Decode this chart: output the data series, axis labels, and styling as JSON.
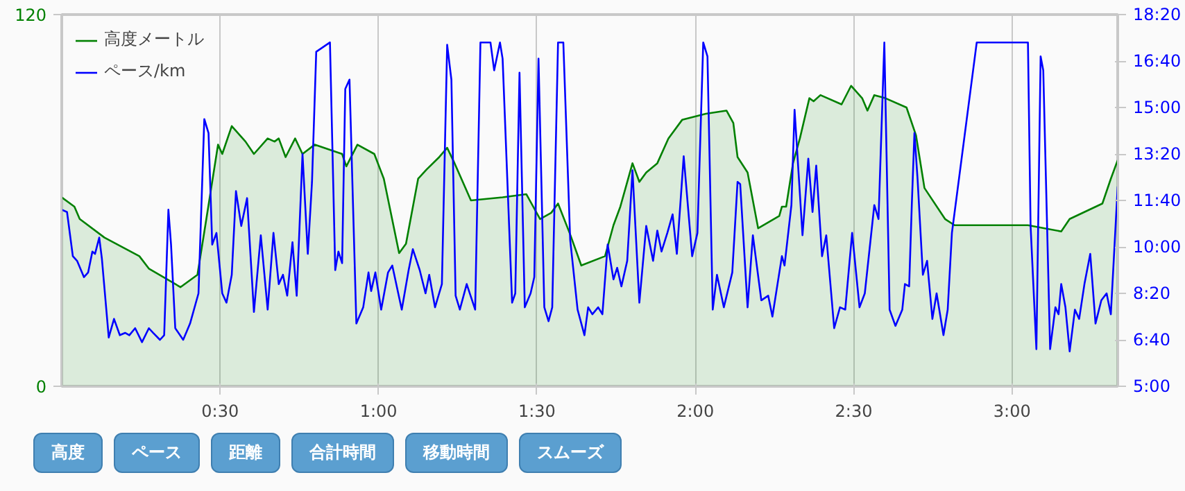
{
  "chart_data": {
    "type": "line",
    "xlim": [
      0,
      200
    ],
    "xticks": [
      {
        "value": 30,
        "label": "0:30"
      },
      {
        "value": 60,
        "label": "1:00"
      },
      {
        "value": 90,
        "label": "1:30"
      },
      {
        "value": 120,
        "label": "2:00"
      },
      {
        "value": 150,
        "label": "2:30"
      },
      {
        "value": 180,
        "label": "3:00"
      }
    ],
    "ylim": [
      0,
      120
    ],
    "yticks": [
      0,
      120
    ],
    "y2lim": [
      300,
      1100
    ],
    "y2ticks": [
      {
        "value": 300,
        "label": "5:00"
      },
      {
        "value": 400,
        "label": "6:40"
      },
      {
        "value": 500,
        "label": "8:20"
      },
      {
        "value": 600,
        "label": "10:00"
      },
      {
        "value": 700,
        "label": "11:40"
      },
      {
        "value": 800,
        "label": "13:20"
      },
      {
        "value": 900,
        "label": "15:00"
      },
      {
        "value": 1000,
        "label": "16:40"
      },
      {
        "value": 1100,
        "label": "18:20"
      }
    ],
    "grid": true,
    "legend": "top left",
    "series": [
      {
        "name": "高度メートル",
        "type": "area",
        "color": "#008000",
        "x": [
          0,
          2.4,
          3.4,
          8.1,
          14.7,
          16.5,
          22.5,
          25.7,
          27.2,
          29.6,
          30.4,
          32.2,
          34.8,
          36.4,
          39.0,
          40.3,
          41.1,
          42.4,
          44.2,
          45.6,
          47.9,
          53.1,
          53.9,
          56.0,
          59.2,
          61.0,
          63.9,
          65.2,
          67.5,
          69.1,
          71.5,
          73.0,
          74.4,
          77.5,
          83.5,
          88.0,
          90.6,
          92.7,
          94.0,
          96.3,
          98.4,
          102.9,
          104.5,
          105.8,
          108.1,
          109.4,
          110.7,
          112.8,
          114.9,
          117.5,
          122.0,
          125.9,
          127.2,
          128.0,
          129.9,
          131.9,
          135.9,
          136.4,
          137.2,
          138.5,
          139.8,
          141.6,
          142.4,
          143.7,
          147.7,
          149.5,
          151.6,
          152.6,
          153.9,
          156.0,
          160.0,
          161.8,
          163.4,
          167.3,
          169.1,
          179.6,
          183.0,
          189.3,
          190.9,
          197.1,
          198.7,
          200.0
        ],
        "values": [
          61,
          58,
          54,
          48,
          42,
          38,
          32,
          36,
          52,
          78,
          75,
          84,
          79,
          75,
          80,
          79,
          80,
          74,
          80,
          75,
          78,
          75,
          71,
          78,
          75,
          67,
          43,
          46,
          67,
          70,
          74,
          77,
          72,
          60,
          61,
          62,
          54,
          56,
          59,
          49,
          39,
          42,
          52,
          58,
          72,
          66,
          69,
          72,
          80,
          86,
          88,
          89,
          85,
          74,
          69,
          51,
          55,
          58,
          58,
          72,
          80,
          93,
          92,
          94,
          91,
          97,
          93,
          89,
          94,
          93,
          90,
          81,
          64,
          54,
          52,
          52,
          52,
          50,
          54,
          59,
          67,
          73
        ]
      },
      {
        "name": "ペース/km",
        "axis": "y2",
        "color": "#0000ff",
        "x": [
          0,
          1.0,
          2.1,
          2.9,
          4.2,
          5.0,
          5.8,
          6.3,
          7.1,
          7.6,
          8.9,
          9.9,
          11.0,
          12.0,
          12.8,
          13.9,
          15.2,
          16.5,
          17.3,
          18.6,
          19.4,
          20.2,
          20.7,
          21.5,
          23.0,
          24.3,
          25.9,
          27.0,
          27.8,
          28.5,
          29.3,
          30.4,
          31.2,
          32.2,
          33.0,
          34.0,
          35.1,
          36.4,
          37.7,
          39.0,
          40.1,
          41.1,
          41.9,
          42.7,
          43.7,
          44.5,
          45.6,
          46.6,
          47.4,
          48.2,
          50.8,
          51.8,
          52.4,
          53.1,
          53.7,
          54.5,
          55.8,
          57.1,
          58.1,
          58.6,
          59.4,
          60.5,
          61.8,
          62.6,
          64.4,
          65.7,
          66.5,
          67.8,
          68.9,
          69.6,
          70.7,
          72.0,
          73.0,
          73.8,
          74.6,
          75.4,
          76.7,
          78.3,
          79.3,
          81.2,
          81.9,
          83.0,
          83.5,
          85.3,
          85.9,
          86.7,
          87.7,
          88.8,
          89.5,
          90.3,
          91.4,
          92.2,
          92.9,
          94.0,
          95.0,
          96.3,
          97.7,
          99.0,
          99.7,
          100.5,
          101.6,
          102.4,
          103.4,
          104.5,
          105.2,
          106.0,
          107.1,
          108.1,
          109.4,
          110.7,
          112.0,
          112.8,
          113.6,
          114.7,
          115.7,
          116.5,
          117.8,
          119.4,
          120.4,
          121.5,
          122.3,
          123.3,
          124.1,
          125.4,
          127.0,
          128.0,
          128.5,
          129.9,
          130.9,
          132.5,
          133.8,
          134.6,
          136.4,
          136.9,
          138.2,
          138.8,
          140.3,
          141.4,
          142.2,
          142.9,
          144.0,
          144.8,
          146.3,
          147.4,
          148.4,
          149.7,
          151.1,
          152.1,
          153.9,
          154.7,
          155.8,
          156.8,
          157.9,
          159.2,
          159.7,
          160.5,
          161.0,
          161.5,
          162.1,
          163.1,
          163.9,
          164.9,
          165.7,
          167.0,
          167.8,
          168.6,
          173.3,
          183.0,
          183.5,
          184.6,
          185.4,
          185.9,
          187.2,
          188.2,
          188.8,
          189.3,
          190.1,
          190.9,
          191.9,
          192.7,
          193.7,
          194.8,
          195.8,
          196.9,
          197.9,
          198.7,
          200.0
        ],
        "values": [
          680,
          675,
          580,
          570,
          535,
          545,
          590,
          585,
          620,
          575,
          405,
          445,
          410,
          415,
          410,
          425,
          395,
          425,
          415,
          400,
          410,
          680,
          605,
          425,
          400,
          435,
          500,
          875,
          845,
          605,
          630,
          500,
          480,
          540,
          720,
          645,
          705,
          460,
          625,
          465,
          630,
          520,
          540,
          495,
          610,
          495,
          800,
          585,
          740,
          1020,
          1040,
          550,
          590,
          565,
          940,
          960,
          435,
          470,
          545,
          505,
          545,
          465,
          545,
          560,
          465,
          550,
          595,
          550,
          500,
          540,
          470,
          520,
          1035,
          960,
          495,
          465,
          520,
          465,
          1040,
          1040,
          980,
          1040,
          1005,
          480,
          500,
          975,
          470,
          500,
          535,
          1005,
          470,
          440,
          470,
          1040,
          1040,
          615,
          465,
          410,
          470,
          455,
          470,
          455,
          605,
          530,
          555,
          515,
          570,
          765,
          480,
          645,
          570,
          635,
          590,
          630,
          670,
          585,
          795,
          580,
          630,
          1040,
          1010,
          465,
          540,
          470,
          545,
          740,
          735,
          470,
          625,
          485,
          495,
          450,
          580,
          560,
          690,
          895,
          625,
          790,
          675,
          775,
          580,
          625,
          425,
          470,
          465,
          630,
          470,
          500,
          690,
          660,
          1040,
          465,
          430,
          465,
          520,
          515,
          690,
          845,
          745,
          540,
          570,
          445,
          500,
          410,
          465,
          630,
          1040,
          1040,
          645,
          380,
          1010,
          980,
          380,
          470,
          455,
          520,
          470,
          375,
          465,
          445,
          520,
          585,
          435,
          485,
          500,
          455,
          730
        ]
      }
    ],
    "annotations": [
      "高度",
      "ペース",
      "距離",
      "合計時間",
      "移動時間",
      "スムーズ"
    ]
  }
}
